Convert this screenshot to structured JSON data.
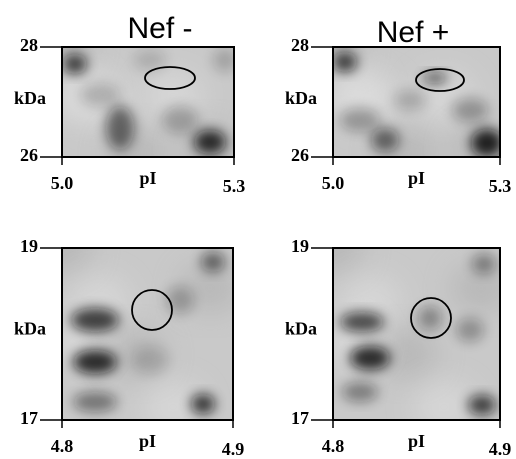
{
  "columns": [
    {
      "title": "Nef -"
    },
    {
      "title": "Nef +"
    }
  ],
  "panels": [
    {
      "y_ticks": [
        "28",
        "26"
      ],
      "y_label": "kDa",
      "x_ticks": [
        "5.0",
        "5.3"
      ],
      "x_label": "pI"
    },
    {
      "y_ticks": [
        "28",
        "26"
      ],
      "y_label": "kDa",
      "x_ticks": [
        "5.0",
        "5.3"
      ],
      "x_label": "pI"
    },
    {
      "y_ticks": [
        "19",
        "17"
      ],
      "y_label": "kDa",
      "x_ticks": [
        "4.8",
        "4.9"
      ],
      "x_label": "pI"
    },
    {
      "y_ticks": [
        "19",
        "17"
      ],
      "y_label": "kDa",
      "x_ticks": [
        "4.8",
        "4.9"
      ],
      "x_label": "pI"
    }
  ]
}
